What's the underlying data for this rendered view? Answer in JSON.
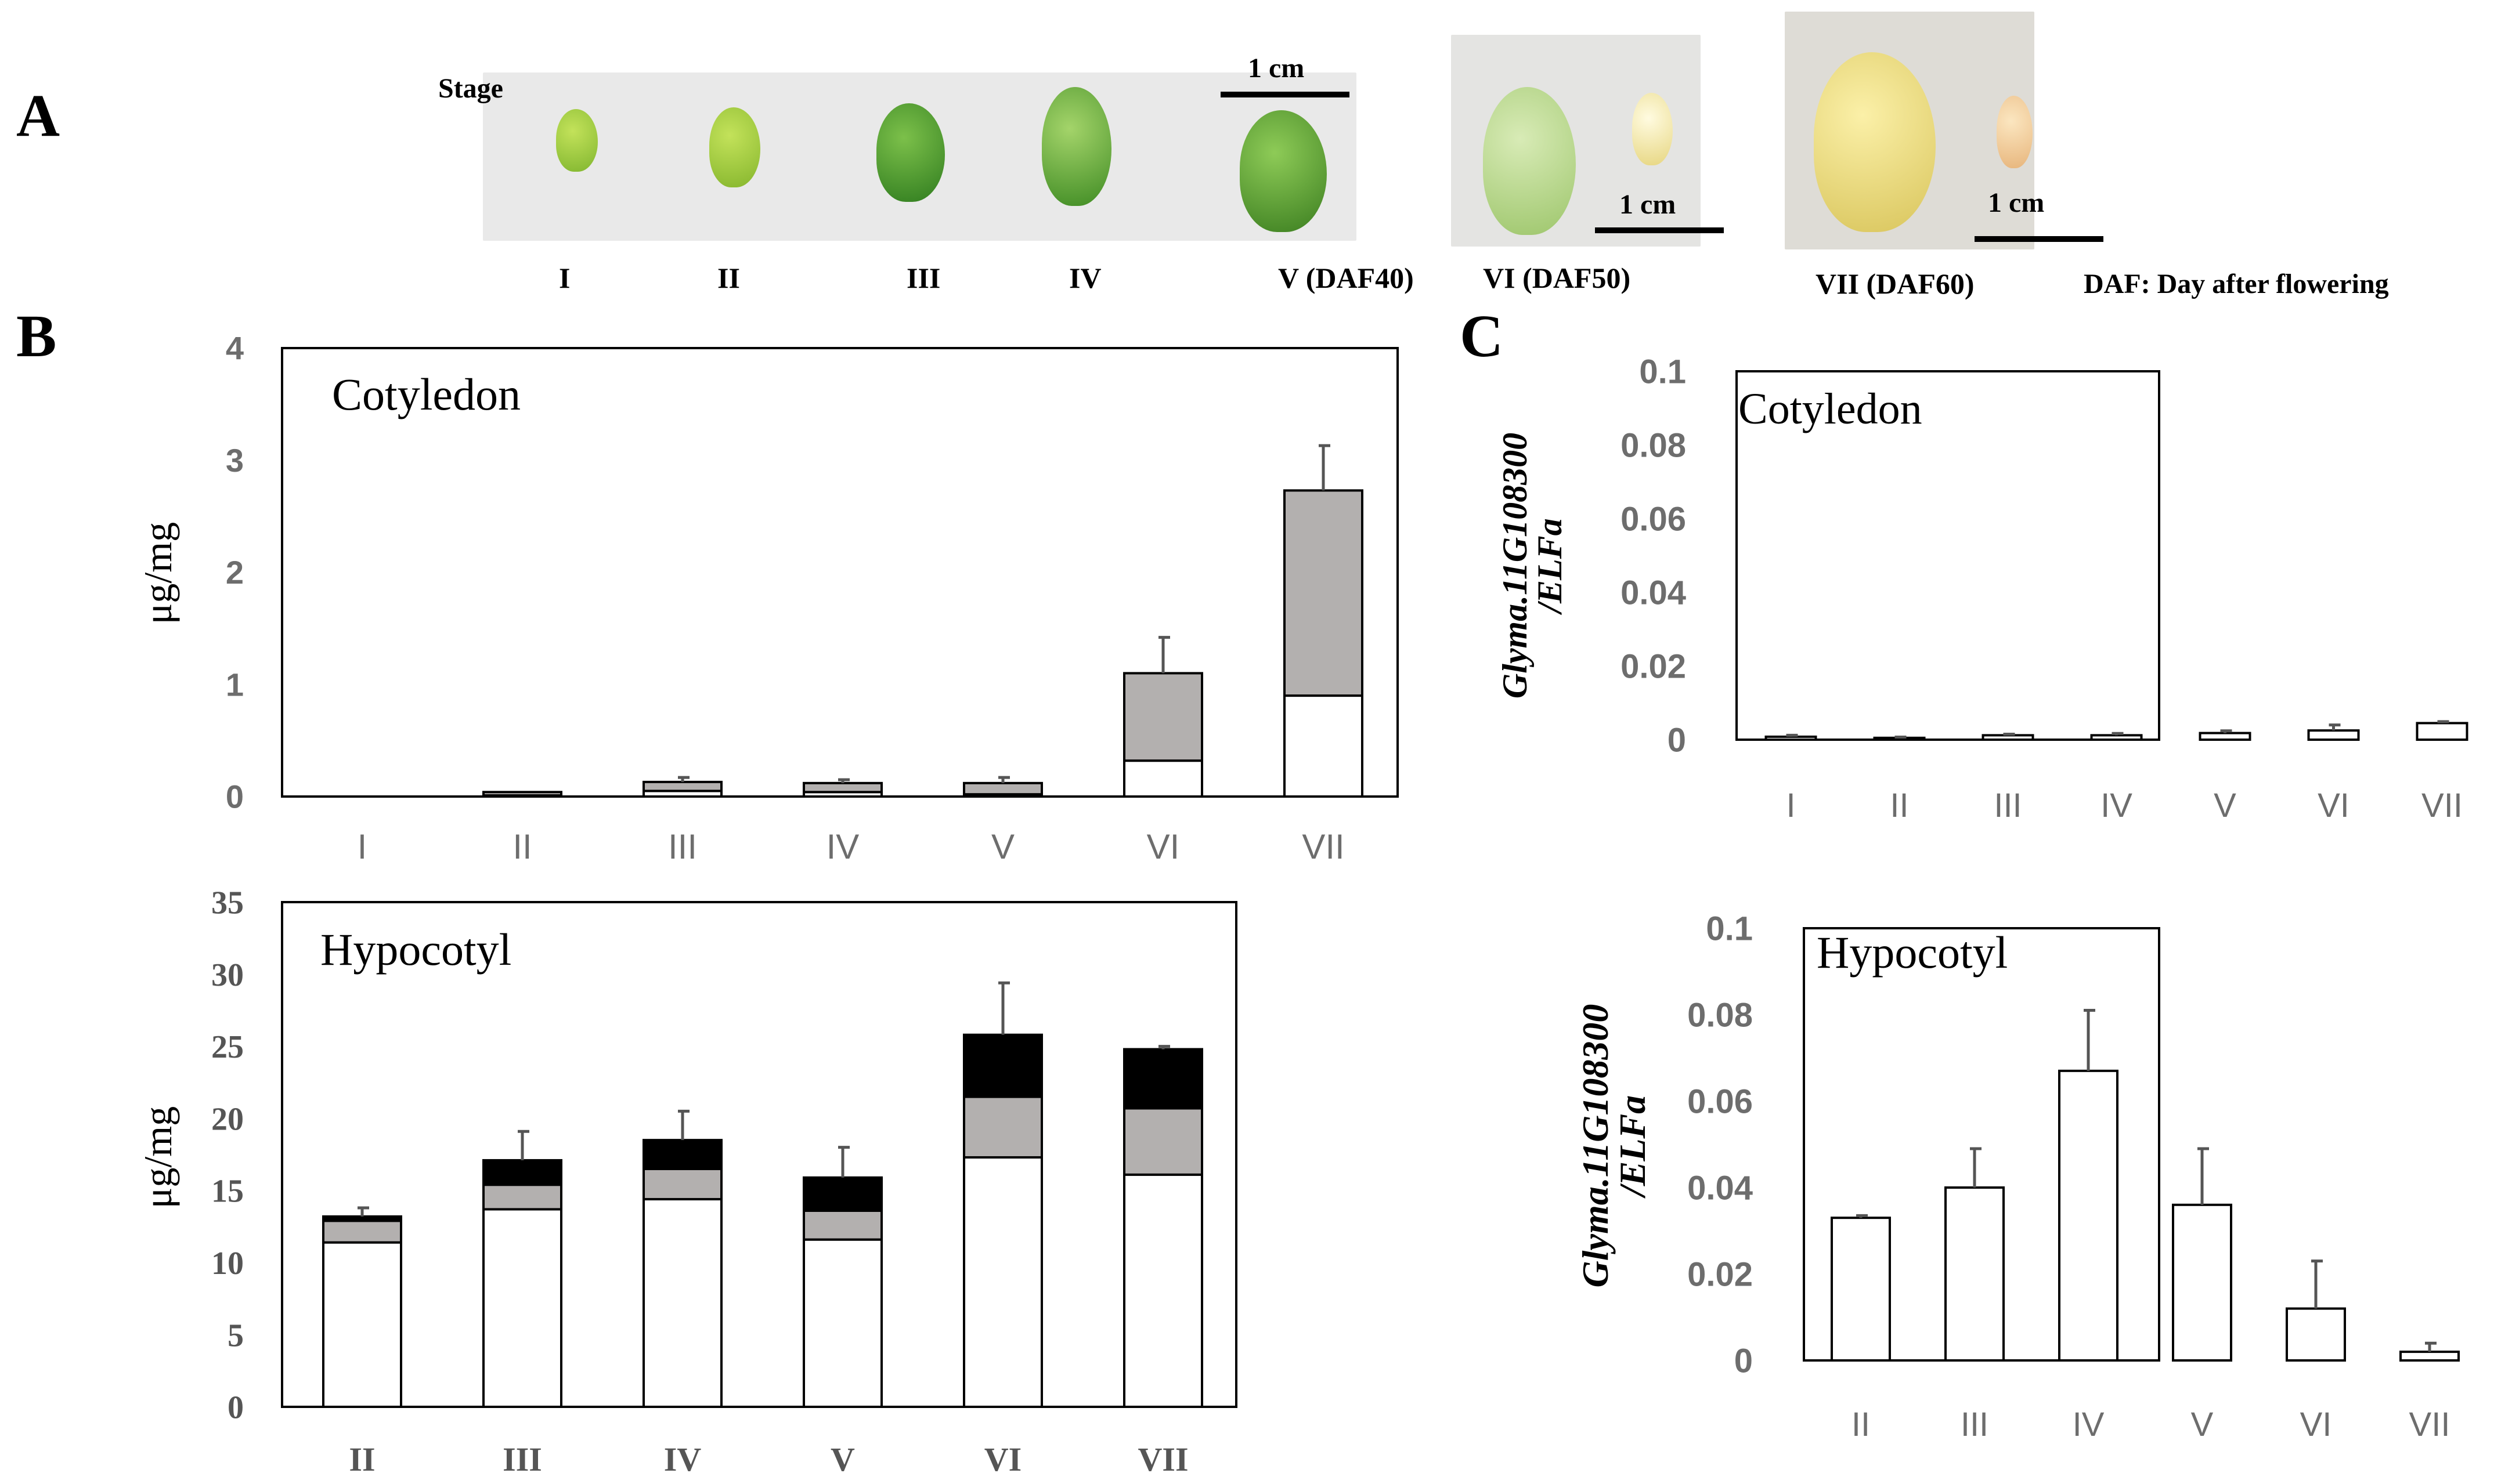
{
  "panel_letters": {
    "a": "A",
    "b": "B",
    "c": "C"
  },
  "photo": {
    "stage_title": "Stage",
    "stages": [
      "I",
      "II",
      "III",
      "IV",
      "V (DAF40)",
      "VI (DAF50)",
      "VII (DAF60)"
    ],
    "scale_label": "1 cm",
    "daf_note": "DAF: Day after flowering",
    "colors": {
      "background": "#e9e9e9",
      "green_light": "#9cc93a",
      "green_dark": "#3f8a22",
      "pale_green": "#b5d486",
      "yellow": "#e8d27a",
      "sprout": "#f0d9a0"
    }
  },
  "chart_data": [
    {
      "id": "b-cotyledon",
      "type": "bar",
      "stacked": true,
      "title": "Cotyledon",
      "ylabel": "μg/mg",
      "ylim": [
        0,
        4
      ],
      "yticks": [
        "0",
        "1",
        "2",
        "3",
        "4"
      ],
      "categories": [
        "I",
        "II",
        "III",
        "IV",
        "V",
        "VI",
        "VII"
      ],
      "series": [
        {
          "name": "white",
          "color": "#ffffff",
          "values": [
            0,
            0.01,
            0.05,
            0.04,
            0.02,
            0.32,
            0.9
          ]
        },
        {
          "name": "gray",
          "color": "#b3b0af",
          "values": [
            0,
            0.03,
            0.08,
            0.08,
            0.1,
            0.78,
            1.83
          ]
        }
      ],
      "errors": [
        0,
        0,
        0.04,
        0.03,
        0.05,
        0.32,
        0.4
      ]
    },
    {
      "id": "b-hypocotyl",
      "type": "bar",
      "stacked": true,
      "title": "Hypocotyl",
      "ylabel": "μg/mg",
      "ylim": [
        0,
        35
      ],
      "yticks": [
        "0",
        "5",
        "10",
        "15",
        "20",
        "25",
        "30",
        "35"
      ],
      "categories": [
        "II",
        "III",
        "IV",
        "V",
        "VI",
        "VII"
      ],
      "series": [
        {
          "name": "white",
          "color": "#ffffff",
          "values": [
            11.4,
            13.7,
            14.4,
            11.6,
            17.3,
            16.1
          ]
        },
        {
          "name": "gray",
          "color": "#b3b0af",
          "values": [
            1.5,
            1.7,
            2.1,
            2.0,
            4.2,
            4.6
          ]
        },
        {
          "name": "black",
          "color": "#000000",
          "values": [
            0.3,
            1.7,
            2.0,
            2.3,
            4.3,
            4.1
          ]
        }
      ],
      "errors": [
        0.6,
        2.0,
        2.0,
        2.1,
        3.6,
        0.2
      ]
    },
    {
      "id": "c-cotyledon",
      "type": "bar",
      "title": "Cotyledon",
      "ylabel": "Glyma.11G108300 /ELFa",
      "ylim": [
        0,
        0.1
      ],
      "yticks": [
        "0",
        "0.02",
        "0.04",
        "0.06",
        "0.08",
        "0.1"
      ],
      "categories": [
        "I",
        "II",
        "III",
        "IV",
        "V",
        "VI",
        "VII"
      ],
      "series": [
        {
          "name": "expression",
          "color": "#ffffff",
          "values": [
            0.0008,
            0.0005,
            0.0012,
            0.0012,
            0.0018,
            0.0025,
            0.0045
          ]
        }
      ],
      "errors": [
        0.0004,
        0.0002,
        0.0003,
        0.0005,
        0.0006,
        0.0015,
        0.0004
      ]
    },
    {
      "id": "c-hypocotyl",
      "type": "bar",
      "title": "Hypocotyl",
      "ylabel": "Glyma.11G108300 /ELFa",
      "ylim": [
        0,
        0.1
      ],
      "yticks": [
        "0",
        "0.02",
        "0.04",
        "0.06",
        "0.08",
        "0.1"
      ],
      "categories": [
        "II",
        "III",
        "IV",
        "V",
        "VI",
        "VII"
      ],
      "series": [
        {
          "name": "expression",
          "color": "#ffffff",
          "values": [
            0.033,
            0.04,
            0.067,
            0.036,
            0.012,
            0.002
          ]
        }
      ],
      "errors": [
        0.0005,
        0.009,
        0.014,
        0.013,
        0.011,
        0.002
      ]
    }
  ]
}
